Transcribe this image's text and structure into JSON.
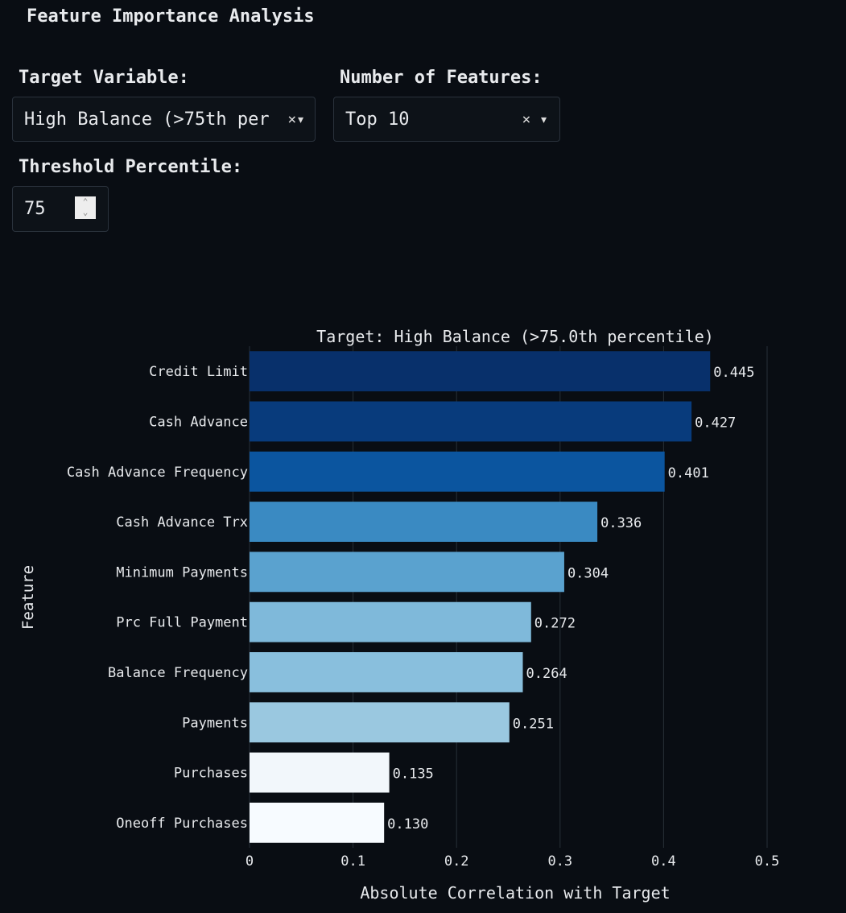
{
  "page_title": "Feature Importance Analysis",
  "controls": {
    "target_label": "Target Variable:",
    "target_value": "High Balance (>75th per",
    "features_label": "Number of Features:",
    "features_value": "Top 10",
    "threshold_label": "Threshold Percentile:",
    "threshold_value": "75"
  },
  "chart_data": {
    "type": "bar",
    "orientation": "horizontal",
    "title": "Target: High Balance (>75.0th percentile)",
    "xlabel": "Absolute Correlation with Target",
    "ylabel": "Feature",
    "xlim": [
      0,
      0.5
    ],
    "xticks": [
      "0",
      "0.1",
      "0.2",
      "0.3",
      "0.4",
      "0.5"
    ],
    "grid": true,
    "categories": [
      "Credit Limit",
      "Cash Advance",
      "Cash Advance Frequency",
      "Cash Advance Trx",
      "Minimum Payments",
      "Prc Full Payment",
      "Balance Frequency",
      "Payments",
      "Purchases",
      "Oneoff Purchases"
    ],
    "values": [
      0.445,
      0.427,
      0.401,
      0.336,
      0.304,
      0.272,
      0.264,
      0.251,
      0.135,
      0.13
    ],
    "labels": [
      "0.445",
      "0.427",
      "0.401",
      "0.336",
      "0.304",
      "0.272",
      "0.264",
      "0.251",
      "0.135",
      "0.130"
    ],
    "colors": [
      "#08306b",
      "#083b7c",
      "#0b559f",
      "#3a8ac2",
      "#5aa2cf",
      "#7fb9da",
      "#89bfdd",
      "#9ac8e0",
      "#f2f7fb",
      "#f7fbff"
    ]
  }
}
